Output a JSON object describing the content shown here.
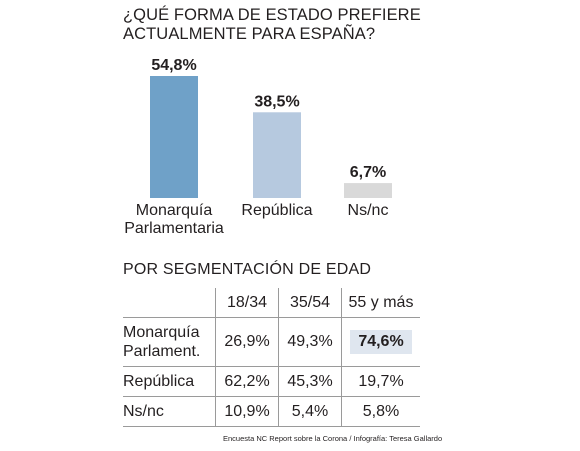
{
  "title": [
    "¿QUÉ FORMA DE ESTADO PREFIERE",
    "ACTUALMENTE PARA ESPAÑA?"
  ],
  "chart_data": {
    "type": "bar",
    "categories": [
      [
        "Monarquía",
        "Parlamentaria"
      ],
      [
        "República"
      ],
      [
        "Ns/nc"
      ]
    ],
    "values": [
      54.8,
      38.5,
      6.7
    ],
    "value_labels": [
      "54,8%",
      "38,5%",
      "6,7%"
    ],
    "colors": [
      "#6fa1c8",
      "#b6c9df",
      "#d9d9d9"
    ],
    "ylim": [
      0,
      54.8
    ]
  },
  "segment_title": "POR SEGMENTACIÓN DE EDAD",
  "table": {
    "headers": [
      "",
      "18/34",
      "35/54",
      "55 y más"
    ],
    "rows": [
      {
        "label": [
          "Monarquía",
          "Parlament."
        ],
        "values": [
          "26,9%",
          "49,3%",
          "74,6%"
        ]
      },
      {
        "label": [
          "República"
        ],
        "values": [
          "62,2%",
          "45,3%",
          "19,7%"
        ]
      },
      {
        "label": [
          "Ns/nc"
        ],
        "values": [
          "10,9%",
          "5,4%",
          "5,8%"
        ]
      }
    ],
    "highlight": {
      "row": 0,
      "col": 2,
      "color": "#dfe6ef"
    }
  },
  "source": "Encuesta NC Report sobre la Corona  /  Infografía: Teresa Gallardo"
}
